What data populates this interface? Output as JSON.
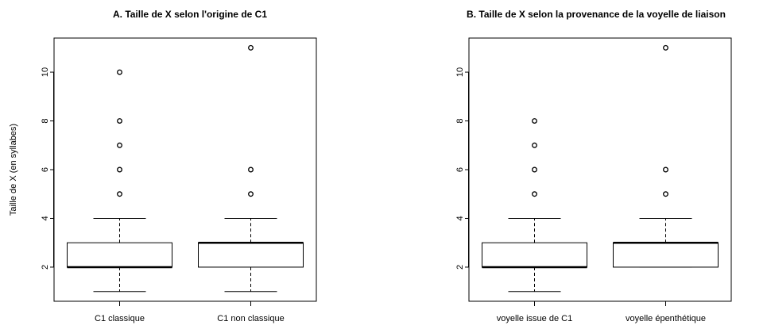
{
  "chart_data": [
    {
      "type": "boxplot",
      "title": "A. Taille de X selon l'origine de C1",
      "xlabel": "",
      "ylabel": "Taille de X (en syllabes)",
      "ylim": [
        0.6,
        11.4
      ],
      "yticks": [
        2,
        4,
        6,
        8,
        10
      ],
      "categories": [
        "C1 classique",
        "C1 non classique"
      ],
      "boxes": [
        {
          "category": "C1 classique",
          "whisker_low": 1,
          "q1": 2,
          "median": 2,
          "q3": 3,
          "whisker_high": 4,
          "outliers": [
            5,
            6,
            7,
            8,
            10
          ]
        },
        {
          "category": "C1 non classique",
          "whisker_low": 1,
          "q1": 2,
          "median": 3,
          "q3": 3,
          "whisker_high": 4,
          "outliers": [
            5,
            6,
            11
          ]
        }
      ]
    },
    {
      "type": "boxplot",
      "title": "B. Taille de X selon la provenance de la voyelle de liaison",
      "xlabel": "",
      "ylabel": "",
      "ylim": [
        0.6,
        11.4
      ],
      "yticks": [
        2,
        4,
        6,
        8,
        10
      ],
      "categories": [
        "voyelle issue de C1",
        "voyelle épenthétique"
      ],
      "boxes": [
        {
          "category": "voyelle issue de C1",
          "whisker_low": 1,
          "q1": 2,
          "median": 2,
          "q3": 3,
          "whisker_high": 4,
          "outliers": [
            5,
            6,
            7,
            8
          ]
        },
        {
          "category": "voyelle épenthétique",
          "whisker_low": 2,
          "q1": 2,
          "median": 3,
          "q3": 3,
          "whisker_high": 4,
          "outliers": [
            5,
            6,
            11
          ]
        }
      ]
    }
  ]
}
